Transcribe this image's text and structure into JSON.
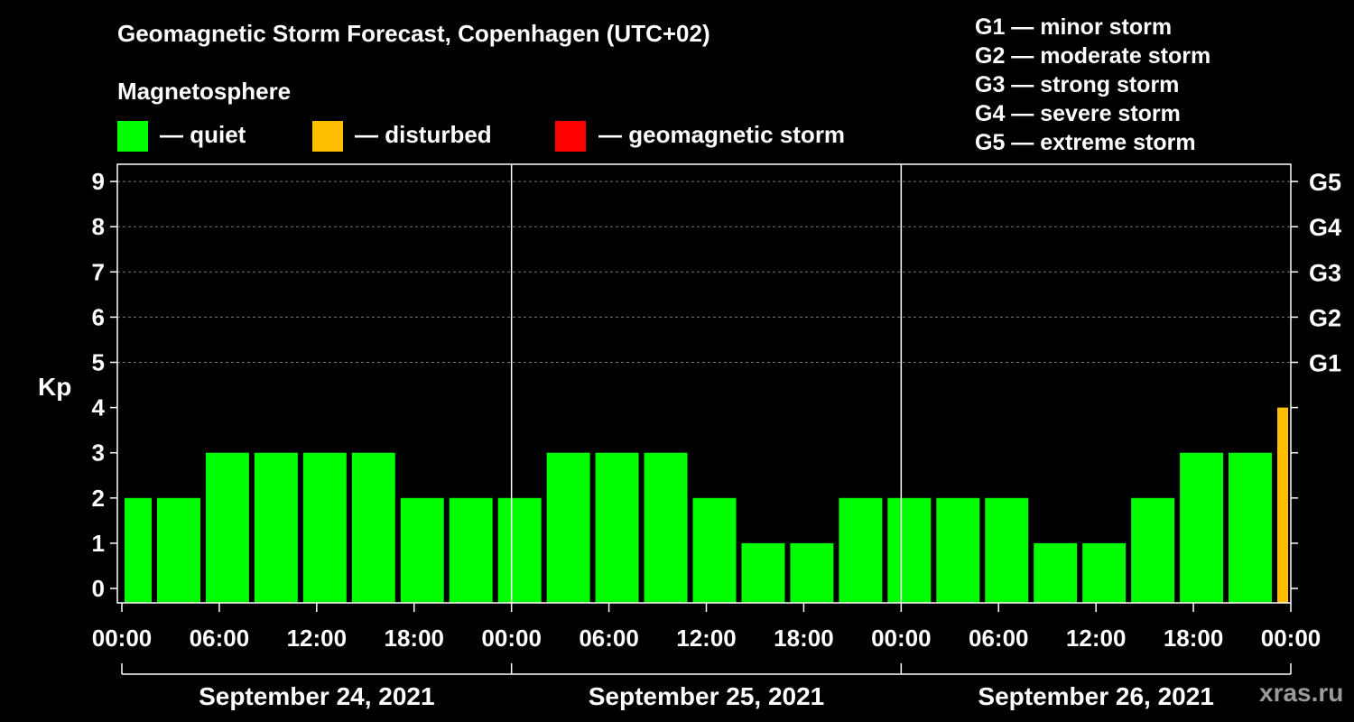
{
  "title": "Geomagnetic Storm Forecast, Copenhagen (UTC+02)",
  "subtitle": "Magnetosphere",
  "legend": [
    {
      "label": "— quiet",
      "color": "#00ff00"
    },
    {
      "label": "— disturbed",
      "color": "#ffbf00"
    },
    {
      "label": "— geomagnetic storm",
      "color": "#ff0000"
    }
  ],
  "storm_scale": [
    "G1 — minor storm",
    "G2 — moderate storm",
    "G3 — strong storm",
    "G4 — severe storm",
    "G5 — extreme storm"
  ],
  "watermark": "xras.ru",
  "colors": {
    "quiet": "#00ff00",
    "disturbed": "#ffbf00",
    "storm": "#ff0000"
  },
  "chart_data": {
    "type": "bar",
    "title": "Geomagnetic Storm Forecast, Copenhagen (UTC+02)",
    "ylabel": "Kp",
    "ylim": [
      0,
      9
    ],
    "yticks": [
      0,
      1,
      2,
      3,
      4,
      5,
      6,
      7,
      8,
      9
    ],
    "g_levels": [
      {
        "kp": 5,
        "label": "G1"
      },
      {
        "kp": 6,
        "label": "G2"
      },
      {
        "kp": 7,
        "label": "G3"
      },
      {
        "kp": 8,
        "label": "G4"
      },
      {
        "kp": 9,
        "label": "G5"
      }
    ],
    "x_range_hours": [
      0,
      72
    ],
    "xtick_labels": [
      "00:00",
      "06:00",
      "12:00",
      "18:00",
      "00:00",
      "06:00",
      "12:00",
      "18:00",
      "00:00",
      "06:00",
      "12:00",
      "18:00",
      "00:00"
    ],
    "days": [
      "September 24, 2021",
      "September 25, 2021",
      "September 26, 2021"
    ],
    "bars": [
      {
        "start": 0,
        "end": 2,
        "kp": 2,
        "status": "quiet"
      },
      {
        "start": 2,
        "end": 5,
        "kp": 2,
        "status": "quiet"
      },
      {
        "start": 5,
        "end": 8,
        "kp": 3,
        "status": "quiet"
      },
      {
        "start": 8,
        "end": 11,
        "kp": 3,
        "status": "quiet"
      },
      {
        "start": 11,
        "end": 14,
        "kp": 3,
        "status": "quiet"
      },
      {
        "start": 14,
        "end": 17,
        "kp": 3,
        "status": "quiet"
      },
      {
        "start": 17,
        "end": 20,
        "kp": 2,
        "status": "quiet"
      },
      {
        "start": 20,
        "end": 23,
        "kp": 2,
        "status": "quiet"
      },
      {
        "start": 23,
        "end": 26,
        "kp": 2,
        "status": "quiet"
      },
      {
        "start": 26,
        "end": 29,
        "kp": 3,
        "status": "quiet"
      },
      {
        "start": 29,
        "end": 32,
        "kp": 3,
        "status": "quiet"
      },
      {
        "start": 32,
        "end": 35,
        "kp": 3,
        "status": "quiet"
      },
      {
        "start": 35,
        "end": 38,
        "kp": 2,
        "status": "quiet"
      },
      {
        "start": 38,
        "end": 41,
        "kp": 1,
        "status": "quiet"
      },
      {
        "start": 41,
        "end": 44,
        "kp": 1,
        "status": "quiet"
      },
      {
        "start": 44,
        "end": 47,
        "kp": 2,
        "status": "quiet"
      },
      {
        "start": 47,
        "end": 50,
        "kp": 2,
        "status": "quiet"
      },
      {
        "start": 50,
        "end": 53,
        "kp": 2,
        "status": "quiet"
      },
      {
        "start": 53,
        "end": 56,
        "kp": 2,
        "status": "quiet"
      },
      {
        "start": 56,
        "end": 59,
        "kp": 1,
        "status": "quiet"
      },
      {
        "start": 59,
        "end": 62,
        "kp": 1,
        "status": "quiet"
      },
      {
        "start": 62,
        "end": 65,
        "kp": 2,
        "status": "quiet"
      },
      {
        "start": 65,
        "end": 68,
        "kp": 3,
        "status": "quiet"
      },
      {
        "start": 68,
        "end": 71,
        "kp": 3,
        "status": "quiet"
      },
      {
        "start": 71,
        "end": 72,
        "kp": 4,
        "status": "disturbed"
      }
    ]
  }
}
